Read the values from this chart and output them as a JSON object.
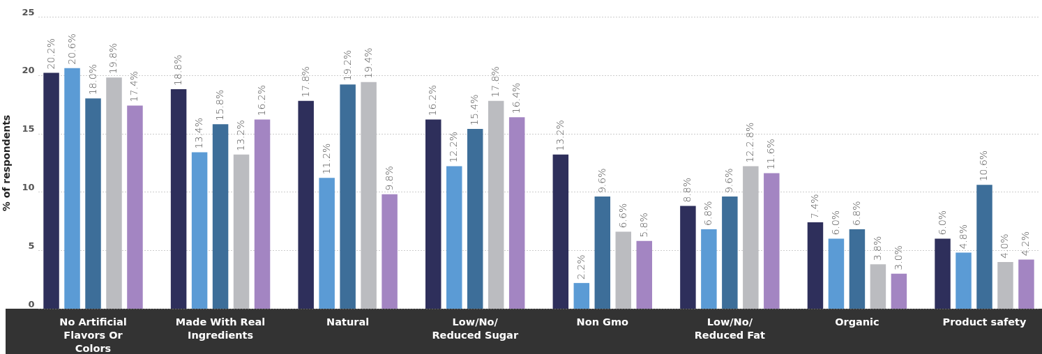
{
  "chart_data": {
    "type": "bar",
    "ylabel": "% of respondents",
    "categories": [
      "No Artificial Flavors Or Colors",
      "Made With Real Ingredients",
      "Natural",
      "Low/No/Reduced Sugar",
      "Non Gmo",
      "Low/No/Reduced Fat",
      "Organic",
      "Product safety"
    ],
    "series": [
      {
        "color": "#2e2f5b",
        "values": [
          20.2,
          18.8,
          17.8,
          16.2,
          13.2,
          8.8,
          7.4,
          6.0
        ],
        "value_labels": [
          "20.2%",
          "18.8%",
          "17.8%",
          "16.2%",
          "13.2%",
          "8.8%",
          "7.4%",
          "6.0%"
        ]
      },
      {
        "color": "#5b9bd5",
        "values": [
          20.6,
          13.4,
          11.2,
          12.2,
          2.2,
          6.8,
          6.0,
          4.8
        ],
        "value_labels": [
          "20.6%",
          "13.4%",
          "11.2%",
          "12.2%",
          "2.2%",
          "6.8%",
          "6.0%",
          "4.8%"
        ]
      },
      {
        "color": "#3d6e99",
        "values": [
          18.0,
          15.8,
          19.2,
          15.4,
          9.6,
          9.6,
          6.8,
          10.6
        ],
        "value_labels": [
          "18.0%",
          "15.8%",
          "19.2%",
          "15.4%",
          "9.6%",
          "9.6%",
          "6.8%",
          "10.6%"
        ]
      },
      {
        "color": "#bbbcc0",
        "values": [
          19.8,
          13.2,
          19.4,
          17.8,
          6.6,
          12.2,
          3.8,
          4.0
        ],
        "value_labels": [
          "19.8%",
          "13.2%",
          "19.4%",
          "17.8%",
          "6.6%",
          "12.2.8%",
          "3.8%",
          "4.0%"
        ]
      },
      {
        "color": "#a385c2",
        "values": [
          17.4,
          16.2,
          9.8,
          16.4,
          5.8,
          11.6,
          3.0,
          4.2
        ],
        "value_labels": [
          "17.4%",
          "16.2%",
          "9.8%",
          "16.4%",
          "5.8%",
          "11.6%",
          "3.0%",
          "4.2%"
        ]
      }
    ],
    "ylim": [
      0,
      25
    ],
    "yticks": [
      0,
      5,
      10,
      15,
      20,
      25
    ],
    "grid": "y"
  }
}
